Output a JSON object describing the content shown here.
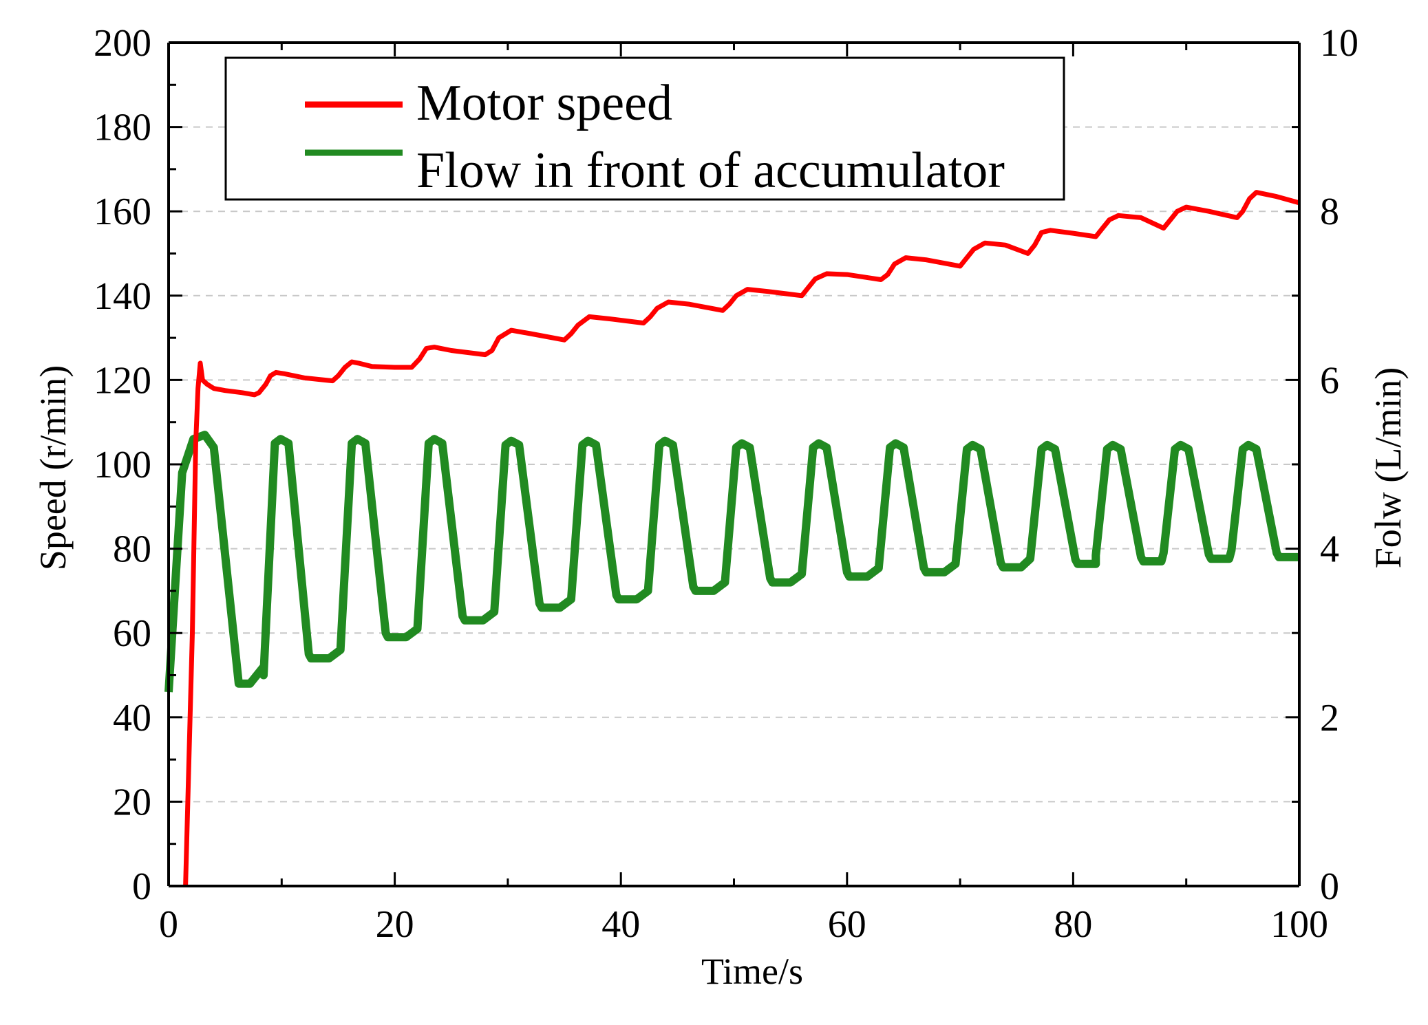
{
  "chart_data": {
    "type": "line",
    "xlabel": "Time/s",
    "ylabel": "Speed (r/min)",
    "y2label": "Folw (L/min)",
    "xlim": [
      0,
      100
    ],
    "ylim": [
      0,
      200
    ],
    "y2lim": [
      0,
      10
    ],
    "xticks": [
      0,
      20,
      40,
      60,
      80,
      100
    ],
    "xtick_labels": [
      "0",
      "20",
      "40",
      "60",
      "80",
      "100"
    ],
    "yticks": [
      0,
      20,
      40,
      60,
      80,
      100,
      120,
      140,
      160,
      180,
      200
    ],
    "ytick_labels": [
      "0",
      "20",
      "40",
      "60",
      "80",
      "100",
      "120",
      "140",
      "160",
      "180",
      "200"
    ],
    "y2ticks": [
      0,
      2,
      4,
      6,
      8,
      10
    ],
    "y2tick_labels": [
      "0",
      "2",
      "4",
      "6",
      "8",
      "10"
    ],
    "grid": "horizontal dashed",
    "legend_position": "top-left",
    "series": [
      {
        "name": "Motor speed",
        "color": "#ff0000",
        "axis": "left",
        "x": [
          1.5,
          2.1,
          2.4,
          2.6,
          2.8,
          3.0,
          3.4,
          4.0,
          5.0,
          6.5,
          7.6,
          8.0,
          8.6,
          9.0,
          9.5,
          10.2,
          12.0,
          14.5,
          15.0,
          15.6,
          16.2,
          16.8,
          18.0,
          20.0,
          21.5,
          22.2,
          22.8,
          23.5,
          25.0,
          28.0,
          28.6,
          29.2,
          30.3,
          32.0,
          35.0,
          35.6,
          36.2,
          37.2,
          39.0,
          42.0,
          42.6,
          43.2,
          44.2,
          46.0,
          49.0,
          49.6,
          50.2,
          51.2,
          53.0,
          56.0,
          56.6,
          57.2,
          58.2,
          60.0,
          63.0,
          63.6,
          64.2,
          65.2,
          67.0,
          70.0,
          70.6,
          71.2,
          72.2,
          74.0,
          76.0,
          76.6,
          77.2,
          78.0,
          80.0,
          82.0,
          82.6,
          83.2,
          84.0,
          86.0,
          88.0,
          88.6,
          89.2,
          90.0,
          92.0,
          94.5,
          95.0,
          95.6,
          96.2,
          98.0,
          100.0
        ],
        "y": [
          0,
          60,
          105,
          118,
          124,
          120,
          119,
          118,
          117.5,
          117,
          116.5,
          117,
          119,
          121,
          121.8,
          121.5,
          120.5,
          119.8,
          121,
          123,
          124.3,
          124,
          123.2,
          123.0,
          123.0,
          125,
          127.5,
          127.8,
          127.0,
          126.0,
          127,
          130,
          131.8,
          131.0,
          129.5,
          131,
          133,
          135.0,
          134.5,
          133.5,
          135,
          137,
          138.5,
          138.0,
          136.5,
          138,
          140,
          141.5,
          141.0,
          140.0,
          142,
          144,
          145.2,
          145.0,
          143.8,
          145,
          147.5,
          149.0,
          148.5,
          147.0,
          149,
          151,
          152.5,
          152.0,
          150.0,
          152,
          155,
          155.5,
          154.8,
          154.0,
          156,
          158,
          159.0,
          158.5,
          156.0,
          158,
          160,
          161.0,
          160.0,
          158.5,
          160,
          163,
          164.5,
          163.5,
          162.0
        ]
      },
      {
        "name": "Flow in front of accumulator",
        "color": "#218a21",
        "axis": "right",
        "period_s": 6.8,
        "cycle_starts_s": [
          1.2,
          8.4,
          15.2,
          22.0,
          28.8,
          35.6,
          42.4,
          49.2,
          56.0,
          62.8,
          69.6,
          76.2,
          82.0,
          88.0,
          94.0
        ],
        "peaks_L_per_min": [
          5.35,
          5.3,
          5.3,
          5.3,
          5.28,
          5.28,
          5.28,
          5.25,
          5.25,
          5.25,
          5.23,
          5.23,
          5.23,
          5.23,
          5.23
        ],
        "troughs_L_per_min": [
          2.4,
          2.7,
          2.95,
          3.15,
          3.3,
          3.4,
          3.5,
          3.6,
          3.67,
          3.72,
          3.78,
          3.82,
          3.85,
          3.88,
          3.9
        ]
      }
    ]
  }
}
